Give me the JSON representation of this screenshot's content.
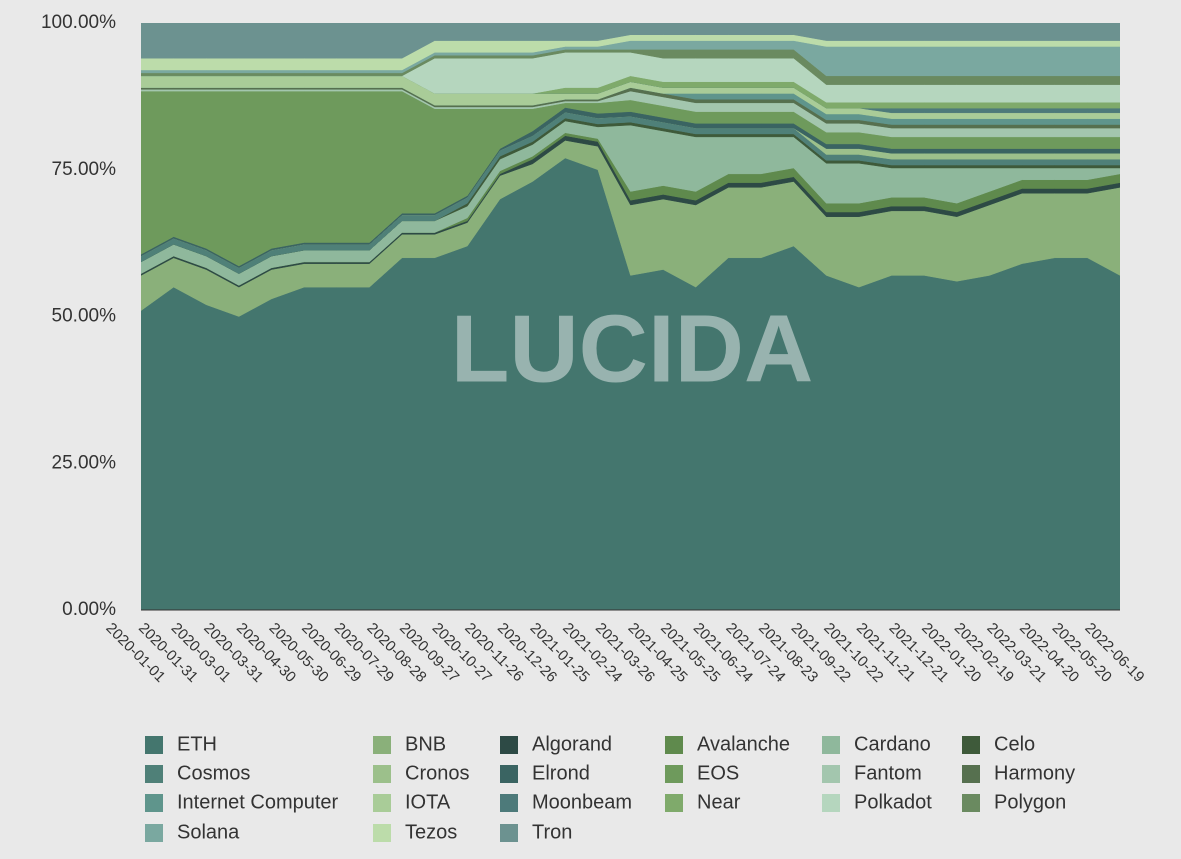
{
  "chart_data": {
    "type": "area",
    "stacked": true,
    "watermark": "LUCIDA",
    "grid": false,
    "categories": [
      "2020-01-01",
      "2020-01-31",
      "2020-03-01",
      "2020-03-31",
      "2020-04-30",
      "2020-05-30",
      "2020-06-29",
      "2020-07-29",
      "2020-08-28",
      "2020-09-27",
      "2020-10-27",
      "2020-11-26",
      "2020-12-26",
      "2021-01-25",
      "2021-02-24",
      "2021-03-26",
      "2021-04-25",
      "2021-05-25",
      "2021-06-24",
      "2021-07-24",
      "2021-08-23",
      "2021-09-22",
      "2021-10-22",
      "2021-11-21",
      "2021-12-21",
      "2022-01-20",
      "2022-02-19",
      "2022-03-21",
      "2022-04-20",
      "2022-05-20",
      "2022-06-19"
    ],
    "ylim": [
      0,
      100
    ],
    "yticks": [
      {
        "value": 0,
        "label": "0.00%"
      },
      {
        "value": 25,
        "label": "25.00%"
      },
      {
        "value": 50,
        "label": "50.00%"
      },
      {
        "value": 75,
        "label": "75.00%"
      },
      {
        "value": 100,
        "label": "100.00%"
      }
    ],
    "series": [
      {
        "name": "ETH",
        "color": "#44766e",
        "values": [
          51,
          55,
          52,
          50,
          53,
          55,
          55,
          55,
          60,
          60,
          62,
          70,
          73,
          77,
          75,
          57,
          58,
          55,
          60,
          60,
          62,
          57,
          55,
          57,
          57,
          56,
          57,
          59,
          60,
          60,
          57
        ]
      },
      {
        "name": "BNB",
        "color": "#8ab07a",
        "values": [
          6,
          5,
          6,
          5,
          5,
          4,
          4,
          4,
          4,
          4,
          4,
          4,
          3,
          3,
          4,
          12,
          12,
          14,
          12,
          12,
          11,
          10,
          12,
          11,
          11,
          11,
          12,
          12,
          11,
          11,
          15
        ]
      },
      {
        "name": "Algorand",
        "color": "#2d4a45",
        "values": [
          0.3,
          0.3,
          0.3,
          0.3,
          0.3,
          0.3,
          0.3,
          0.3,
          0.3,
          0.3,
          0.3,
          0.3,
          0.8,
          0.8,
          0.8,
          0.8,
          0.8,
          0.8,
          0.8,
          0.8,
          0.8,
          0.8,
          0.8,
          0.8,
          0.8,
          0.8,
          0.8,
          0.8,
          0.8,
          0.8,
          0.8
        ]
      },
      {
        "name": "Avalanche",
        "color": "#5f8a4d",
        "values": [
          0,
          0,
          0,
          0,
          0,
          0,
          0,
          0,
          0,
          0,
          0.5,
          0.5,
          0.5,
          0.5,
          0.5,
          1.5,
          1.5,
          1.5,
          1.5,
          1.5,
          1.5,
          1.5,
          1.5,
          1.5,
          1.5,
          1.5,
          1.5,
          1.5,
          1.5,
          1.5,
          1.5
        ]
      },
      {
        "name": "Cardano",
        "color": "#8fb89c",
        "values": [
          2,
          2,
          2,
          2,
          2,
          2,
          2,
          2,
          2,
          2,
          2,
          2,
          2,
          2,
          2,
          11.3,
          9.3,
          9.3,
          6.3,
          6.3,
          5.3,
          6.8,
          6.8,
          5,
          5,
          6,
          4,
          2,
          2,
          2,
          1
        ]
      },
      {
        "name": "Celo",
        "color": "#3e5a3a",
        "values": [
          0,
          0,
          0,
          0,
          0,
          0,
          0,
          0,
          0,
          0,
          0.5,
          0.5,
          0.5,
          0.5,
          0.5,
          0.5,
          0.5,
          0.5,
          0.5,
          0.5,
          0.5,
          0.5,
          0.5,
          0.5,
          0.5,
          0.5,
          0.5,
          0.5,
          0.5,
          0.5,
          0.5
        ]
      },
      {
        "name": "Cosmos",
        "color": "#4f8078",
        "values": [
          1,
          1,
          1,
          1,
          1,
          1,
          1,
          1,
          1,
          1,
          1,
          1,
          1,
          1,
          1,
          1,
          1,
          1,
          1,
          1,
          1,
          1,
          1,
          1,
          1,
          1,
          1,
          1,
          1,
          1,
          1
        ]
      },
      {
        "name": "Cronos",
        "color": "#9cc08b",
        "values": [
          0,
          0,
          0,
          0,
          0,
          0,
          0,
          0,
          0,
          0,
          0,
          0,
          0,
          0,
          0,
          0,
          0,
          0,
          0,
          0,
          0,
          1,
          1,
          1,
          1,
          1,
          1,
          1,
          1,
          1,
          1
        ]
      },
      {
        "name": "Elrond",
        "color": "#3a6462",
        "values": [
          0.3,
          0.3,
          0.3,
          0.3,
          0.3,
          0.3,
          0.3,
          0.3,
          0.3,
          0.3,
          0.3,
          0.3,
          0.8,
          0.8,
          0.8,
          0.8,
          0.8,
          0.8,
          0.8,
          0.8,
          0.8,
          0.8,
          0.8,
          0.8,
          0.8,
          0.8,
          0.8,
          0.8,
          0.8,
          0.8,
          0.8
        ]
      },
      {
        "name": "EOS",
        "color": "#6e9a5c",
        "values": [
          27.8,
          24.8,
          26.8,
          29.8,
          26.8,
          25.8,
          25.8,
          25.8,
          20.8,
          17.8,
          14.8,
          6.8,
          3.8,
          0.8,
          1.8,
          2,
          2,
          2,
          2,
          2,
          2,
          2,
          2,
          2,
          2,
          2,
          2,
          2,
          2,
          2,
          2
        ]
      },
      {
        "name": "Fantom",
        "color": "#a3c6ae",
        "values": [
          0.3,
          0.3,
          0.3,
          0.3,
          0.3,
          0.3,
          0.3,
          0.3,
          0.3,
          0.3,
          0.3,
          0.3,
          0.3,
          0.3,
          0.3,
          1.5,
          1.5,
          1.5,
          1.5,
          1.5,
          1.5,
          1.5,
          1.5,
          1.5,
          1.5,
          1.5,
          1.5,
          1.5,
          1.5,
          1.5,
          1.5
        ]
      },
      {
        "name": "Harmony",
        "color": "#56704f",
        "values": [
          0.3,
          0.3,
          0.3,
          0.3,
          0.3,
          0.3,
          0.3,
          0.3,
          0.3,
          0.3,
          0.3,
          0.3,
          0.3,
          0.3,
          0.3,
          0.6,
          0.6,
          0.6,
          0.6,
          0.6,
          0.6,
          0.6,
          0.6,
          0.6,
          0.6,
          0.6,
          0.6,
          0.6,
          0.6,
          0.6,
          0.6
        ]
      },
      {
        "name": "Internet Computer",
        "color": "#5f958c",
        "values": [
          0,
          0,
          0,
          0,
          0,
          0,
          0,
          0,
          0,
          0,
          0,
          0,
          0,
          0,
          0,
          0,
          0,
          1,
          1,
          1,
          1,
          1,
          1,
          1,
          1,
          1,
          1,
          1,
          1,
          1,
          1
        ]
      },
      {
        "name": "IOTA",
        "color": "#a9cc98",
        "values": [
          2,
          2,
          2,
          2,
          2,
          2,
          2,
          2,
          2,
          2,
          2,
          2,
          2,
          1,
          1,
          1,
          1,
          1,
          1,
          1,
          1,
          1,
          1,
          1,
          1,
          1,
          1,
          1,
          1,
          1,
          1
        ]
      },
      {
        "name": "Moonbeam",
        "color": "#4d7a7a",
        "values": [
          0,
          0,
          0,
          0,
          0,
          0,
          0,
          0,
          0,
          0,
          0,
          0,
          0,
          0,
          0,
          0,
          0,
          0,
          0,
          0,
          0,
          0,
          0,
          0.8,
          0.8,
          0.8,
          0.8,
          0.8,
          0.8,
          0.8,
          0.8
        ]
      },
      {
        "name": "Near",
        "color": "#7faa6b",
        "values": [
          0,
          0,
          0,
          0,
          0,
          0,
          0,
          0,
          0,
          0,
          0,
          0,
          0,
          1,
          1,
          1,
          1,
          1,
          1,
          1,
          1,
          1,
          1,
          1,
          1,
          1,
          1,
          1,
          1,
          1,
          1
        ]
      },
      {
        "name": "Polkadot",
        "color": "#b5d6be",
        "values": [
          0,
          0,
          0,
          0,
          0,
          0,
          0,
          0,
          0,
          6,
          6,
          6,
          6,
          6,
          6,
          4,
          4,
          4,
          4,
          4,
          4,
          3,
          3,
          3,
          3,
          3,
          3,
          3,
          3,
          3,
          3
        ]
      },
      {
        "name": "Polygon",
        "color": "#6a8a60",
        "values": [
          0.5,
          0.5,
          0.5,
          0.5,
          0.5,
          0.5,
          0.5,
          0.5,
          0.5,
          0.5,
          0.5,
          0.5,
          0.5,
          0.5,
          0.5,
          0.5,
          1.5,
          1.5,
          1.5,
          1.5,
          1.5,
          1.5,
          1.5,
          1.5,
          1.5,
          1.5,
          1.5,
          1.5,
          1.5,
          1.5,
          1.5
        ]
      },
      {
        "name": "Solana",
        "color": "#7aa8a0",
        "values": [
          0.5,
          0.5,
          0.5,
          0.5,
          0.5,
          0.5,
          0.5,
          0.5,
          0.5,
          0.5,
          0.5,
          0.5,
          0.5,
          0.5,
          0.5,
          1.5,
          1.5,
          1.5,
          1.5,
          1.5,
          1.5,
          5,
          5,
          5,
          5,
          5,
          5,
          5,
          5,
          5,
          5
        ]
      },
      {
        "name": "Tezos",
        "color": "#bcdcaa",
        "values": [
          2,
          2,
          2,
          2,
          2,
          2,
          2,
          2,
          2,
          2,
          2,
          2,
          2,
          1,
          1,
          1,
          1,
          1,
          1,
          1,
          1,
          1,
          1,
          1,
          1,
          1,
          1,
          1,
          1,
          1,
          1
        ]
      },
      {
        "name": "Tron",
        "color": "#6c9290",
        "values": [
          6,
          6,
          6,
          6,
          6,
          6,
          6,
          6,
          6,
          3,
          3,
          3,
          3,
          3,
          3,
          2,
          2,
          2,
          2,
          2,
          2,
          3,
          3,
          3,
          3,
          3,
          3,
          3,
          3,
          3,
          3
        ]
      }
    ]
  }
}
